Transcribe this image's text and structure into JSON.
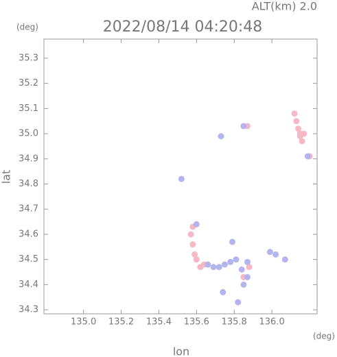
{
  "chart_data": {
    "type": "scatter",
    "title": "2022/08/14 04:20:48",
    "subtitle": "ALT(km) 2.0",
    "y_unit": "(deg)",
    "x_unit": "(deg)",
    "x_label": "lon",
    "y_label": "lat",
    "xlim": [
      134.79,
      136.24
    ],
    "ylim": [
      34.284,
      35.376
    ],
    "xticks": [
      {
        "value": 135,
        "label": "135.0"
      },
      135.2,
      135.4,
      135.6,
      135.8,
      {
        "value": 136,
        "label": "136.0"
      }
    ],
    "yticks": [
      34.3,
      34.4,
      34.5,
      34.6,
      34.7,
      34.8,
      34.9,
      {
        "value": 35,
        "label": "35.0"
      },
      35.1,
      35.2,
      35.3
    ],
    "series": [
      {
        "color": "#f6b8c4",
        "x": [
          136.12,
          136.13,
          136.14,
          136.15,
          136.16,
          136.15,
          136.17,
          136.2,
          135.87,
          135.57,
          135.58,
          135.59,
          135.6,
          135.62,
          135.58,
          135.64,
          135.85,
          135.88
        ],
        "y": [
          35.08,
          35.05,
          35.02,
          34.99,
          34.97,
          35.0,
          35.0,
          34.91,
          35.03,
          34.6,
          34.56,
          34.52,
          34.5,
          34.47,
          34.63,
          34.48,
          34.43,
          34.47
        ]
      },
      {
        "color": "#b4b4ee",
        "x": [
          135.52,
          135.73,
          135.85,
          135.66,
          135.69,
          135.72,
          135.75,
          135.78,
          135.81,
          135.84,
          135.85,
          135.87,
          135.82,
          135.79,
          135.99,
          136.02,
          136.07,
          135.74,
          136.19,
          135.6,
          135.87
        ],
        "y": [
          34.82,
          34.99,
          35.03,
          34.48,
          34.47,
          34.47,
          34.48,
          34.49,
          34.5,
          34.46,
          34.4,
          34.43,
          34.33,
          34.57,
          34.53,
          34.52,
          34.5,
          34.37,
          34.91,
          34.64,
          34.49
        ]
      }
    ]
  }
}
